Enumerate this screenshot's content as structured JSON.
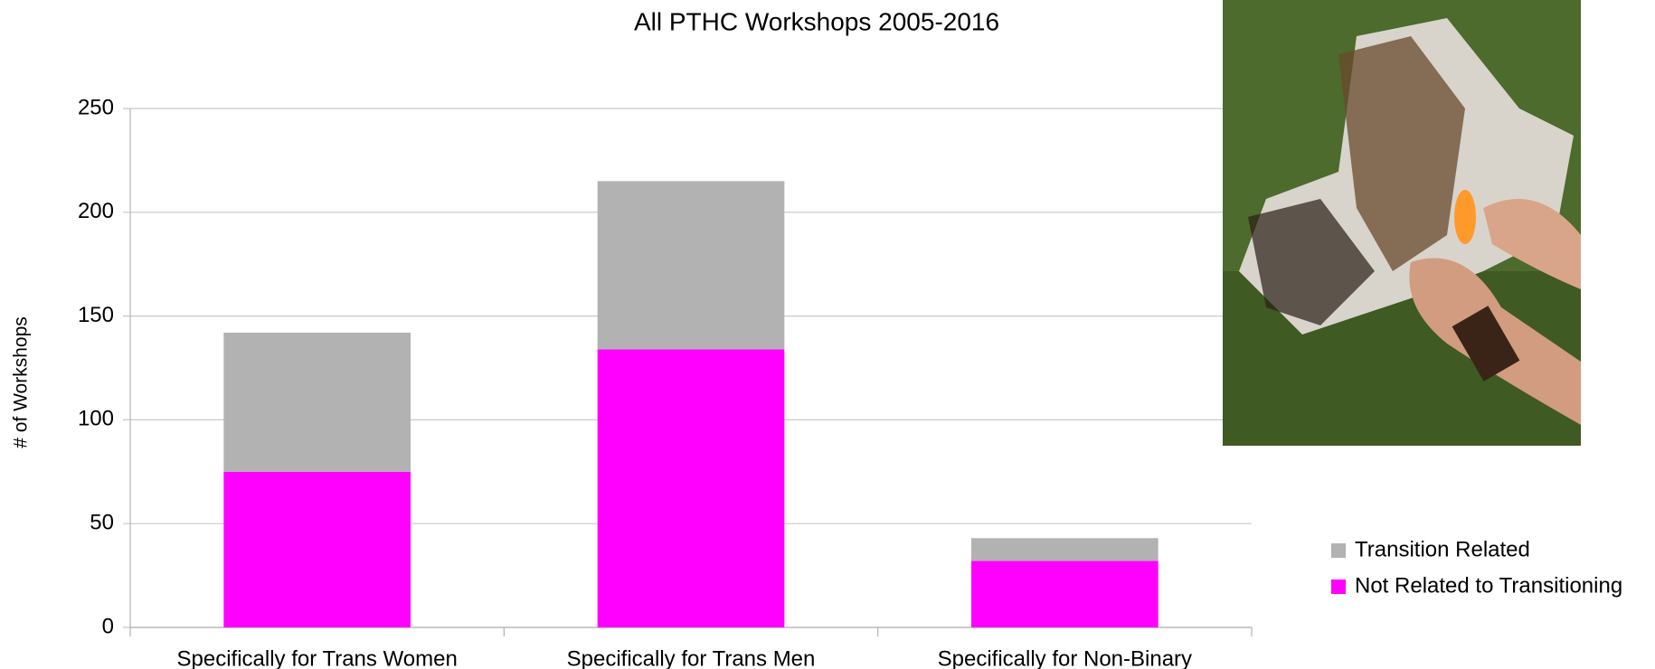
{
  "chart_data": {
    "type": "stacked_bar",
    "title": "All PTHC Workshops 2005-2016",
    "y_label": "# of Workshops",
    "categories": [
      "Specifically for Trans Women",
      "Specifically for Trans Men",
      "Specifically for Non-Binary"
    ],
    "series": [
      {
        "name": "Not Related to Transitioning",
        "color": "#ff00ff",
        "values": [
          75,
          134,
          32
        ]
      },
      {
        "name": "Transition Related",
        "color": "#b2b2b2",
        "values": [
          67,
          81,
          11
        ]
      }
    ],
    "ylim": [
      0,
      250
    ],
    "yticks": [
      0,
      50,
      100,
      150,
      200,
      250
    ],
    "grid": true,
    "legend": "right"
  }
}
